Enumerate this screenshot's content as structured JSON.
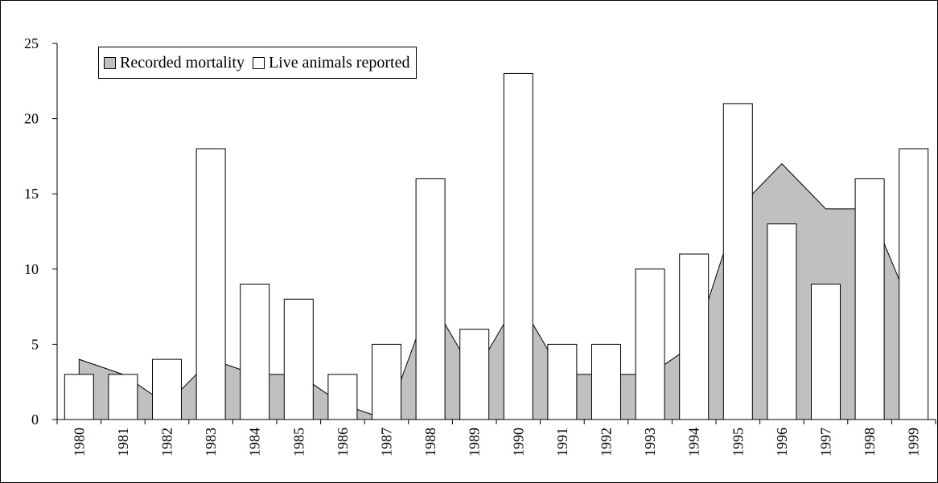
{
  "chart_data": {
    "type": "bar",
    "categories": [
      "1980",
      "1981",
      "1982",
      "1983",
      "1984",
      "1985",
      "1986",
      "1987",
      "1988",
      "1989",
      "1990",
      "1991",
      "1992",
      "1993",
      "1994",
      "1995",
      "1996",
      "1997",
      "1998",
      "1999"
    ],
    "series": [
      {
        "name": "Recorded mortality",
        "type": "area",
        "color": "#c0c0c0",
        "values": [
          4,
          3,
          1,
          4,
          3,
          3,
          1,
          0,
          8,
          3,
          8,
          3,
          3,
          3,
          5,
          14,
          17,
          14,
          14,
          7
        ]
      },
      {
        "name": "Live animals reported",
        "type": "bar",
        "color": "#ffffff",
        "values": [
          3,
          3,
          4,
          18,
          9,
          8,
          3,
          5,
          16,
          6,
          23,
          5,
          5,
          10,
          11,
          21,
          13,
          9,
          16,
          18
        ]
      }
    ],
    "ylim": [
      0,
      25
    ],
    "yticks": [
      0,
      5,
      10,
      15,
      20,
      25
    ],
    "title": "",
    "xlabel": "",
    "ylabel": "",
    "grid": false,
    "legend_placement": "top-left"
  }
}
